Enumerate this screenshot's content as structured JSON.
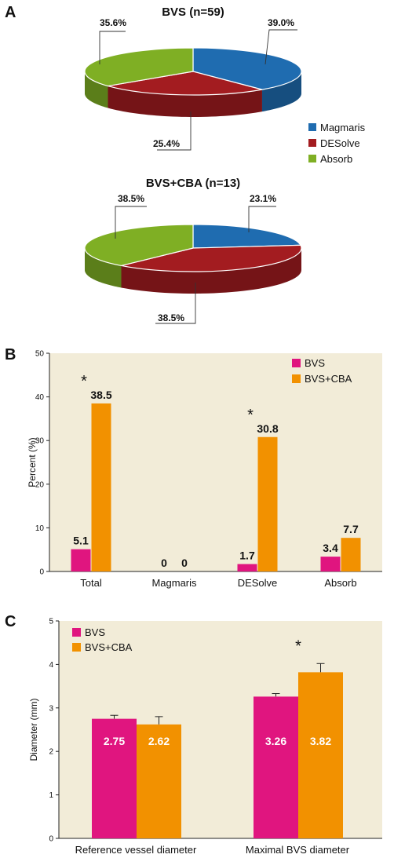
{
  "panels": {
    "a": "A",
    "b": "B",
    "c": "C"
  },
  "colors": {
    "magmaris": "#1f6cb0",
    "desolve": "#a31c20",
    "absorb": "#7faf24",
    "bvs": "#e0157f",
    "bvs_cba": "#f29100",
    "plot_bg": "#f2ecd8"
  },
  "chart_data": [
    {
      "type": "pie",
      "title": "BVS (n=59)",
      "slices": [
        {
          "name": "Magmaris",
          "value": 39.0,
          "label": "39.0%"
        },
        {
          "name": "DESolve",
          "value": 25.4,
          "label": "25.4%"
        },
        {
          "name": "Absorb",
          "value": 35.6,
          "label": "35.6%"
        }
      ]
    },
    {
      "type": "pie",
      "title": "BVS+CBA (n=13)",
      "slices": [
        {
          "name": "Magmaris",
          "value": 23.1,
          "label": "23.1%"
        },
        {
          "name": "DESolve",
          "value": 38.5,
          "label": "38.5%"
        },
        {
          "name": "Absorb",
          "value": 38.5,
          "label": "38.5%"
        }
      ]
    },
    {
      "type": "bar",
      "categories": [
        "Total",
        "Magmaris",
        "DESolve",
        "Absorb"
      ],
      "series": [
        {
          "name": "BVS",
          "values": [
            5.1,
            0,
            1.7,
            3.4
          ],
          "labels": [
            "5.1",
            "0",
            "1.7",
            "3.4"
          ]
        },
        {
          "name": "BVS+CBA",
          "values": [
            38.5,
            0,
            30.8,
            7.7
          ],
          "labels": [
            "38.5",
            "0",
            "30.8",
            "7.7"
          ]
        }
      ],
      "ylabel": "Percent (%)",
      "ylim": [
        0,
        50
      ],
      "yticks": [
        "0",
        "10",
        "20",
        "30",
        "40",
        "50"
      ],
      "significance": [
        "*",
        "",
        "*",
        ""
      ],
      "legend_position": "top-right"
    },
    {
      "type": "bar",
      "categories": [
        "Reference vessel diameter",
        "Maximal BVS diameter"
      ],
      "series": [
        {
          "name": "BVS",
          "values": [
            2.75,
            3.26
          ],
          "errors": [
            0.08,
            0.07
          ],
          "labels": [
            "2.75",
            "3.26"
          ]
        },
        {
          "name": "BVS+CBA",
          "values": [
            2.62,
            3.82
          ],
          "errors": [
            0.18,
            0.2
          ],
          "labels": [
            "2.62",
            "3.82"
          ]
        }
      ],
      "ylabel": "Diameter (mm)",
      "ylim": [
        0,
        5
      ],
      "yticks": [
        "0",
        "1",
        "2",
        "3",
        "4",
        "5"
      ],
      "significance": [
        "",
        "*"
      ],
      "legend_position": "top-left"
    }
  ]
}
